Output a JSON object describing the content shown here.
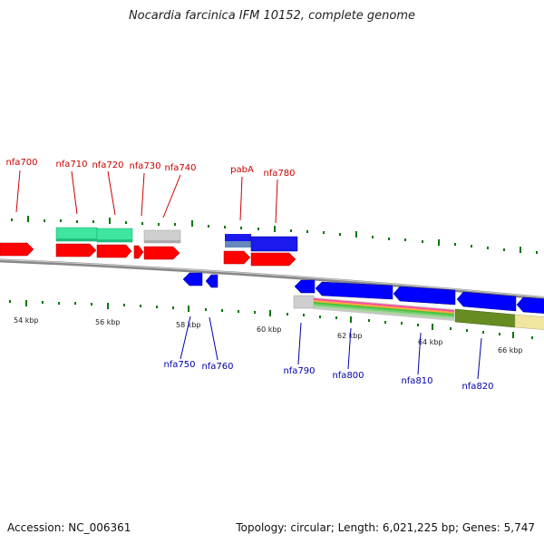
{
  "title": "Nocardia farcinica IFM 10152, complete genome",
  "footer": {
    "accession": "Accession: NC_006361",
    "summary": "Topology: circular; Length: 6,021,225 bp; Genes: 5,747"
  },
  "colors": {
    "forward_gene": "#ff0000",
    "reverse_gene": "#0000ff",
    "forward_label": "#cc0000",
    "reverse_label": "#0000aa",
    "backbone": "#888888",
    "ticks": "#007700"
  },
  "scale_labels": [
    "54 kbp",
    "56 kbp",
    "58 kbp",
    "60 kbp",
    "62 kbp",
    "64 kbp",
    "66 kbp"
  ],
  "forward_labels": [
    "nfa700",
    "nfa710",
    "nfa720",
    "nfa730",
    "nfa740",
    "pabA",
    "nfa780"
  ],
  "reverse_labels": [
    "nfa750",
    "nfa760",
    "nfa790",
    "nfa800",
    "nfa810",
    "nfa820"
  ]
}
